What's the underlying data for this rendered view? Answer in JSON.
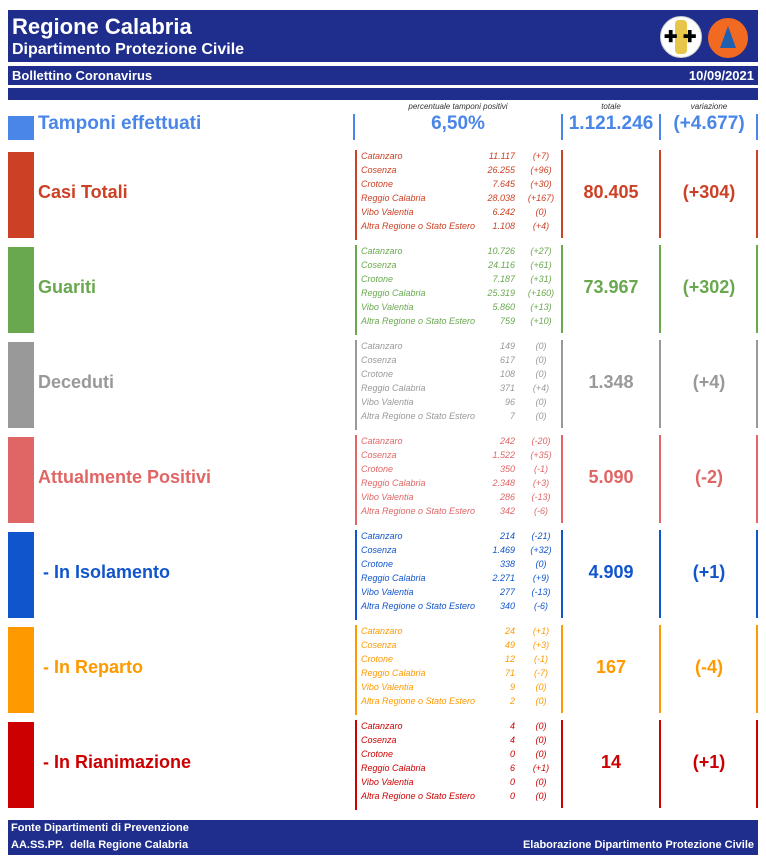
{
  "header": {
    "title": "Regione Calabria",
    "subtitle": "Dipartimento Protezione Civile",
    "bulletin": "Bollettino Coronavirus",
    "date": "10/09/2021"
  },
  "columns": {
    "percent": "percentuale tamponi positivi",
    "total": "totale",
    "variation": "variazione"
  },
  "tamponi": {
    "label": "Tamponi effettuati",
    "percent": "6,50%",
    "total": "1.121.246",
    "variation": "(+4.677)",
    "color": "#4a86e8"
  },
  "sections": [
    {
      "label": "Casi Totali",
      "total": "80.405",
      "variation": "(+304)",
      "color": "#cc4125",
      "rows": [
        [
          "Catanzaro",
          "11.117",
          "(+7)"
        ],
        [
          "Cosenza",
          "26.255",
          "(+96)"
        ],
        [
          "Crotone",
          "7.645",
          "(+30)"
        ],
        [
          "Reggio Calabria",
          "28.038",
          "(+167)"
        ],
        [
          "Vibo Valentia",
          "6.242",
          "(0)"
        ],
        [
          "Altra Regione o Stato Estero",
          "1.108",
          "(+4)"
        ]
      ]
    },
    {
      "label": "Guariti",
      "total": "73.967",
      "variation": "(+302)",
      "color": "#6aa84f",
      "rows": [
        [
          "Catanzaro",
          "10.726",
          "(+27)"
        ],
        [
          "Cosenza",
          "24.116",
          "(+61)"
        ],
        [
          "Crotone",
          "7.187",
          "(+31)"
        ],
        [
          "Reggio Calabria",
          "25.319",
          "(+160)"
        ],
        [
          "Vibo Valentia",
          "5.860",
          "(+13)"
        ],
        [
          "Altra Regione o Stato Estero",
          "759",
          "(+10)"
        ]
      ]
    },
    {
      "label": "Deceduti",
      "total": "1.348",
      "variation": "(+4)",
      "color": "#999999",
      "rows": [
        [
          "Catanzaro",
          "149",
          "(0)"
        ],
        [
          "Cosenza",
          "617",
          "(0)"
        ],
        [
          "Crotone",
          "108",
          "(0)"
        ],
        [
          "Reggio Calabria",
          "371",
          "(+4)"
        ],
        [
          "Vibo Valentia",
          "96",
          "(0)"
        ],
        [
          "Altra Regione o Stato Estero",
          "7",
          "(0)"
        ]
      ]
    },
    {
      "label": "Attualmente Positivi",
      "total": "5.090",
      "variation": "(-2)",
      "color": "#e06666",
      "rows": [
        [
          "Catanzaro",
          "242",
          "(-20)"
        ],
        [
          "Cosenza",
          "1.522",
          "(+35)"
        ],
        [
          "Crotone",
          "350",
          "(-1)"
        ],
        [
          "Reggio Calabria",
          "2.348",
          "(+3)"
        ],
        [
          "Vibo Valentia",
          "286",
          "(-13)"
        ],
        [
          "Altra Regione o Stato Estero",
          "342",
          "(-6)"
        ]
      ]
    },
    {
      "label": " - In Isolamento",
      "total": "4.909",
      "variation": "(+1)",
      "color": "#1155cc",
      "rows": [
        [
          "Catanzaro",
          "214",
          "(-21)"
        ],
        [
          "Cosenza",
          "1.469",
          "(+32)"
        ],
        [
          "Crotone",
          "338",
          "(0)"
        ],
        [
          "Reggio Calabria",
          "2.271",
          "(+9)"
        ],
        [
          "Vibo Valentia",
          "277",
          "(-13)"
        ],
        [
          "Altra Regione o Stato Estero",
          "340",
          "(-6)"
        ]
      ]
    },
    {
      "label": " - In Reparto",
      "total": "167",
      "variation": "(-4)",
      "color": "#ff9900",
      "rows": [
        [
          "Catanzaro",
          "24",
          "(+1)"
        ],
        [
          "Cosenza",
          "49",
          "(+3)"
        ],
        [
          "Crotone",
          "12",
          "(-1)"
        ],
        [
          "Reggio Calabria",
          "71",
          "(-7)"
        ],
        [
          "Vibo Valentia",
          "9",
          "(0)"
        ],
        [
          "Altra Regione o Stato Estero",
          "2",
          "(0)"
        ]
      ]
    },
    {
      "label": " - In Rianimazione",
      "total": "14",
      "variation": "(+1)",
      "color": "#cc0000",
      "rows": [
        [
          "Catanzaro",
          "4",
          "(0)"
        ],
        [
          "Cosenza",
          "4",
          "(0)"
        ],
        [
          "Crotone",
          "0",
          "(0)"
        ],
        [
          "Reggio Calabria",
          "6",
          "(+1)"
        ],
        [
          "Vibo Valentia",
          "0",
          "(0)"
        ],
        [
          "Altra Regione o Stato Estero",
          "0",
          "(0)"
        ]
      ]
    }
  ],
  "footer": {
    "source1": "Fonte Dipartimenti di Prevenzione",
    "source2": "AA.SS.PP.  della Regione Calabria",
    "credit": "Elaborazione Dipartimento Protezione Civile"
  }
}
